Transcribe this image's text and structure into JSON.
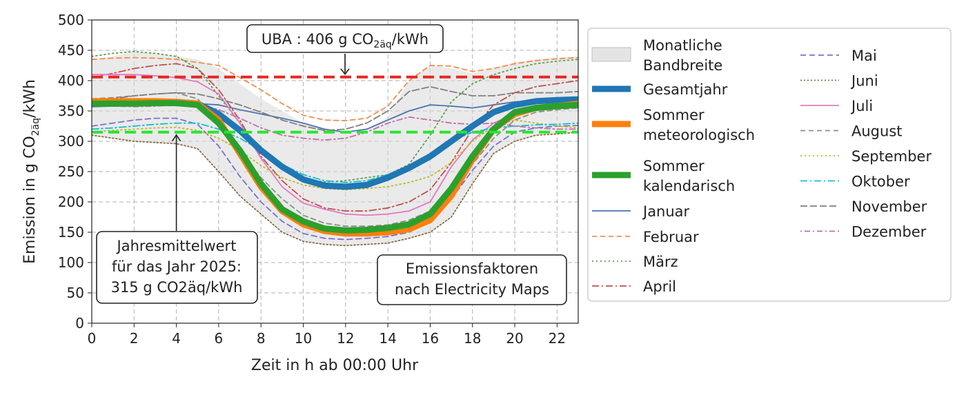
{
  "chart_data": {
    "type": "line",
    "xlabel": "Zeit in h ab 00:00 Uhr",
    "ylabel_main": "Emission in g CO",
    "ylabel_sub": "2äq",
    "ylabel_tail": "/kWh",
    "xlim": [
      0,
      23
    ],
    "ylim": [
      0,
      500
    ],
    "xticks": [
      "0",
      "2",
      "4",
      "6",
      "8",
      "10",
      "12",
      "14",
      "16",
      "18",
      "20",
      "22"
    ],
    "yticks": [
      "0",
      "50",
      "100",
      "150",
      "200",
      "250",
      "300",
      "350",
      "400",
      "450",
      "500"
    ],
    "grid": true,
    "x": [
      0,
      1,
      2,
      3,
      4,
      5,
      6,
      7,
      8,
      9,
      10,
      11,
      12,
      13,
      14,
      15,
      16,
      17,
      18,
      19,
      20,
      21,
      22,
      23
    ],
    "band": {
      "label": "Monatliche Bandbreite",
      "upper": [
        435,
        440,
        448,
        445,
        440,
        435,
        420,
        395,
        370,
        350,
        330,
        320,
        315,
        320,
        340,
        400,
        425,
        420,
        412,
        420,
        430,
        435,
        438,
        440
      ],
      "lower": [
        310,
        305,
        300,
        298,
        296,
        288,
        250,
        210,
        180,
        150,
        135,
        130,
        128,
        130,
        132,
        140,
        150,
        175,
        230,
        280,
        300,
        310,
        312,
        315
      ]
    },
    "reference_lines": [
      {
        "name": "UBA",
        "value": 406,
        "color": "#e8271f",
        "label_text": "UBA : 406 g CO",
        "label_sub": "2äq",
        "label_tail": "/kWh"
      },
      {
        "name": "Jahresmittelwert",
        "value": 315,
        "color": "#27e62f",
        "label_lines": [
          "Jahresmittelwert",
          "für das Jahr 2025:",
          "315 g CO2äq/kWh"
        ]
      }
    ],
    "annotation": [
      "Emissionsfaktoren",
      "nach Electricity Maps"
    ],
    "series": [
      {
        "name": "Gesamtjahr",
        "color": "#1f77b4",
        "width": 9,
        "dash": "",
        "values": [
          361,
          362,
          363,
          364,
          365,
          362,
          345,
          318,
          285,
          258,
          237,
          227,
          225,
          228,
          240,
          256,
          275,
          300,
          325,
          348,
          360,
          366,
          368,
          369
        ]
      },
      {
        "name": "Sommer meteorologisch",
        "color": "#ff7f0e",
        "width": 9,
        "dash": "",
        "values": [
          366,
          366,
          366,
          366,
          365,
          362,
          335,
          280,
          225,
          185,
          163,
          152,
          148,
          148,
          150,
          155,
          170,
          210,
          270,
          320,
          345,
          355,
          358,
          362
        ]
      },
      {
        "name": "Sommer kalendarisch",
        "color": "#2ca02c",
        "width": 9,
        "dash": "",
        "values": [
          362,
          362,
          362,
          363,
          363,
          360,
          330,
          285,
          230,
          188,
          168,
          156,
          153,
          154,
          157,
          163,
          180,
          222,
          275,
          320,
          348,
          355,
          358,
          360
        ]
      },
      {
        "name": "Januar",
        "color": "#4c72b0",
        "width": 1.8,
        "dash": "",
        "values": [
          358,
          358,
          359,
          360,
          361,
          362,
          360,
          352,
          345,
          338,
          330,
          320,
          315,
          320,
          335,
          350,
          360,
          358,
          355,
          360,
          365,
          367,
          368,
          370
        ]
      },
      {
        "name": "Februar",
        "color": "#f28e4c",
        "width": 1.8,
        "dash": "7,5",
        "values": [
          435,
          437,
          438,
          437,
          435,
          430,
          425,
          405,
          385,
          362,
          343,
          335,
          334,
          338,
          358,
          400,
          425,
          424,
          415,
          420,
          428,
          433,
          436,
          438
        ]
      },
      {
        "name": "März",
        "color": "#59a14f",
        "width": 1.8,
        "dash": "2,4",
        "values": [
          440,
          445,
          448,
          445,
          440,
          420,
          375,
          330,
          285,
          255,
          238,
          233,
          235,
          240,
          245,
          262,
          310,
          365,
          395,
          410,
          420,
          428,
          432,
          435
        ]
      },
      {
        "name": "April",
        "color": "#c0504d",
        "width": 1.8,
        "dash": "10,4,2,4",
        "values": [
          405,
          412,
          420,
          425,
          428,
          420,
          385,
          335,
          275,
          235,
          205,
          190,
          185,
          185,
          190,
          200,
          220,
          265,
          320,
          360,
          380,
          390,
          395,
          400
        ]
      },
      {
        "name": "Mai",
        "color": "#7a6fd0",
        "width": 1.8,
        "dash": "8,5",
        "values": [
          325,
          330,
          335,
          338,
          338,
          328,
          292,
          242,
          200,
          168,
          148,
          140,
          138,
          140,
          143,
          150,
          168,
          205,
          252,
          292,
          315,
          322,
          325,
          326
        ]
      },
      {
        "name": "Juni",
        "color": "#8c6d46",
        "width": 1.8,
        "dash": "2,3",
        "values": [
          310,
          305,
          300,
          298,
          296,
          288,
          250,
          210,
          180,
          150,
          135,
          130,
          128,
          130,
          132,
          140,
          150,
          175,
          230,
          280,
          300,
          310,
          312,
          315
        ]
      },
      {
        "name": "Juli",
        "color": "#e377c2",
        "width": 1.8,
        "dash": "",
        "values": [
          410,
          410,
          410,
          408,
          405,
          398,
          378,
          330,
          272,
          225,
          198,
          188,
          180,
          178,
          180,
          185,
          200,
          258,
          302,
          330,
          345,
          355,
          358,
          360
        ]
      },
      {
        "name": "August",
        "color": "#8c8c8c",
        "width": 1.8,
        "dash": "7,5",
        "values": [
          370,
          372,
          375,
          378,
          380,
          370,
          330,
          285,
          240,
          205,
          178,
          165,
          160,
          160,
          162,
          170,
          185,
          218,
          262,
          305,
          335,
          348,
          352,
          355
        ]
      },
      {
        "name": "September",
        "color": "#bcbd22",
        "width": 1.8,
        "dash": "2,4",
        "values": [
          315,
          318,
          320,
          322,
          323,
          318,
          305,
          285,
          260,
          240,
          228,
          222,
          220,
          222,
          225,
          232,
          242,
          265,
          300,
          325,
          335,
          330,
          325,
          322
        ]
      },
      {
        "name": "Oktober",
        "color": "#17becf",
        "width": 1.8,
        "dash": "10,4,2,4",
        "values": [
          320,
          322,
          325,
          328,
          330,
          330,
          320,
          305,
          285,
          262,
          245,
          235,
          232,
          235,
          245,
          260,
          280,
          300,
          315,
          322,
          325,
          327,
          328,
          330
        ]
      },
      {
        "name": "November",
        "color": "#7f7f7f",
        "width": 1.8,
        "dash": "10,4",
        "values": [
          368,
          370,
          375,
          378,
          380,
          378,
          370,
          360,
          348,
          335,
          325,
          318,
          320,
          330,
          350,
          382,
          390,
          382,
          375,
          375,
          380,
          380,
          380,
          382
        ]
      },
      {
        "name": "Dezember",
        "color": "#c06fa8",
        "width": 1.8,
        "dash": "2,4,8,4",
        "values": [
          360,
          358,
          357,
          358,
          360,
          362,
          352,
          338,
          322,
          310,
          305,
          302,
          305,
          315,
          330,
          340,
          335,
          330,
          328,
          330,
          325,
          322,
          320,
          320
        ]
      }
    ],
    "legend": {
      "placement": "right",
      "col1": [
        {
          "label": [
            "Monatliche",
            "Bandbreite"
          ],
          "kind": "band"
        },
        {
          "label": [
            "Gesamtjahr"
          ],
          "series": 0
        },
        {
          "label": [
            "Sommer",
            "meteorologisch"
          ],
          "series": 1
        },
        {
          "label": [
            "Sommer",
            "kalendarisch"
          ],
          "series": 2
        },
        {
          "label": [
            "Januar"
          ],
          "series": 3
        },
        {
          "label": [
            "Februar"
          ],
          "series": 4
        },
        {
          "label": [
            "März"
          ],
          "series": 5
        },
        {
          "label": [
            "April"
          ],
          "series": 6
        }
      ],
      "col2": [
        {
          "label": [
            "Mai"
          ],
          "series": 7
        },
        {
          "label": [
            "Juni"
          ],
          "series": 8
        },
        {
          "label": [
            "Juli"
          ],
          "series": 9
        },
        {
          "label": [
            "August"
          ],
          "series": 10
        },
        {
          "label": [
            "September"
          ],
          "series": 11
        },
        {
          "label": [
            "Oktober"
          ],
          "series": 12
        },
        {
          "label": [
            "November"
          ],
          "series": 13
        },
        {
          "label": [
            "Dezember"
          ],
          "series": 14
        }
      ]
    }
  }
}
